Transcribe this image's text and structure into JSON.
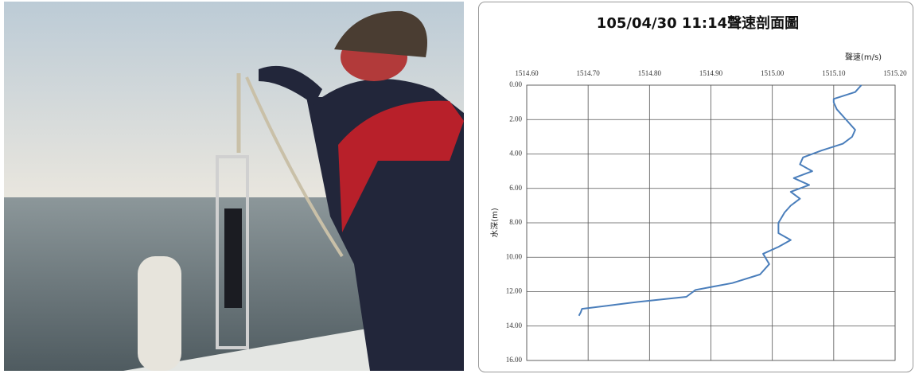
{
  "chart_data": {
    "type": "line",
    "title": "105/04/30  11:14聲速剖面圖",
    "x_label": "聲速(m/s)",
    "y_label": "水深(m)",
    "x_axis_position": "top",
    "y_axis_inverted": true,
    "grid": true,
    "xlim": [
      1514.6,
      1515.2
    ],
    "xticks": [
      {
        "value": 1514.6,
        "label": "1514.60"
      },
      {
        "value": 1514.7,
        "label": "1514.70"
      },
      {
        "value": 1514.8,
        "label": "1514.80"
      },
      {
        "value": 1514.9,
        "label": "1514.90"
      },
      {
        "value": 1515.0,
        "label": "1515.00"
      },
      {
        "value": 1515.1,
        "label": "1515.10"
      },
      {
        "value": 1515.2,
        "label": "1515.20"
      }
    ],
    "ylim": [
      0,
      16
    ],
    "yticks": [
      {
        "value": 0,
        "label": "0.00"
      },
      {
        "value": 2,
        "label": "2.00"
      },
      {
        "value": 4,
        "label": "4.00"
      },
      {
        "value": 6,
        "label": "6.00"
      },
      {
        "value": 8,
        "label": "8.00"
      },
      {
        "value": 10,
        "label": "10.00"
      },
      {
        "value": 12,
        "label": "12.00"
      },
      {
        "value": 14,
        "label": "14.00"
      },
      {
        "value": 16,
        "label": "16.00"
      }
    ],
    "x": [
      1515.145,
      1515.135,
      1515.1,
      1515.1,
      1515.105,
      1515.12,
      1515.135,
      1515.13,
      1515.115,
      1515.08,
      1515.05,
      1515.045,
      1515.065,
      1515.035,
      1515.06,
      1515.03,
      1515.045,
      1515.03,
      1515.02,
      1515.01,
      1515.01,
      1515.03,
      1515.01,
      1514.985,
      1514.995,
      1514.98,
      1514.935,
      1514.875,
      1514.86,
      1514.78,
      1514.69,
      1514.688,
      1514.685
    ],
    "series": [
      {
        "color": "#4a7ebb",
        "values": [
          0,
          0.4,
          0.8,
          1.0,
          1.4,
          2.0,
          2.6,
          3.0,
          3.4,
          3.8,
          4.2,
          4.6,
          5.0,
          5.4,
          5.8,
          6.2,
          6.6,
          7.0,
          7.4,
          8.0,
          8.6,
          9.0,
          9.4,
          9.8,
          10.4,
          11.0,
          11.5,
          11.9,
          12.3,
          12.6,
          13.0,
          13.2,
          13.4
        ]
      }
    ]
  }
}
